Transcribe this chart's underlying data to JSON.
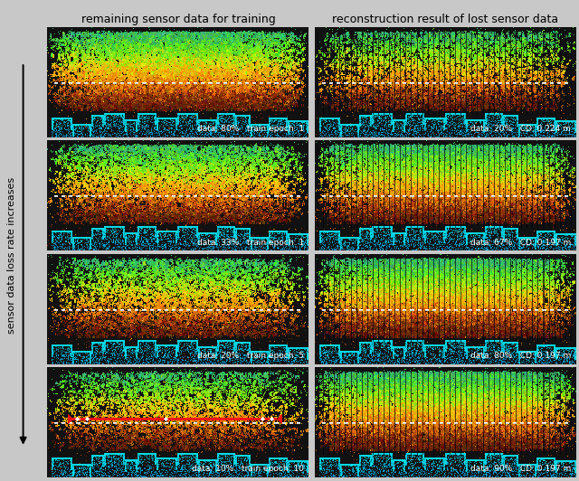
{
  "title_left": "remaining sensor data for training",
  "title_right": "reconstruction result of lost sensor data",
  "ylabel": "sensor data loss rate increases",
  "rows": [
    {
      "left_label": "data: 80%   train epoch: 1",
      "right_label": "data: 20%   CD: 0.224 m"
    },
    {
      "left_label": "data: 33%   train epoch: 1",
      "right_label": "data: 67%   CD: 0.197 m"
    },
    {
      "left_label": "data: 20%   train epoch: 5",
      "right_label": "data: 80%   CD: 0.197 m"
    },
    {
      "left_label": "data: 10%   train epoch: 10",
      "right_label": "data: 90%   CD: 0.197 m"
    }
  ],
  "bg_color": "#111111",
  "outer_bg": "#c8c8c8",
  "label_color": "white",
  "title_color": "black",
  "arrow_color": "black"
}
